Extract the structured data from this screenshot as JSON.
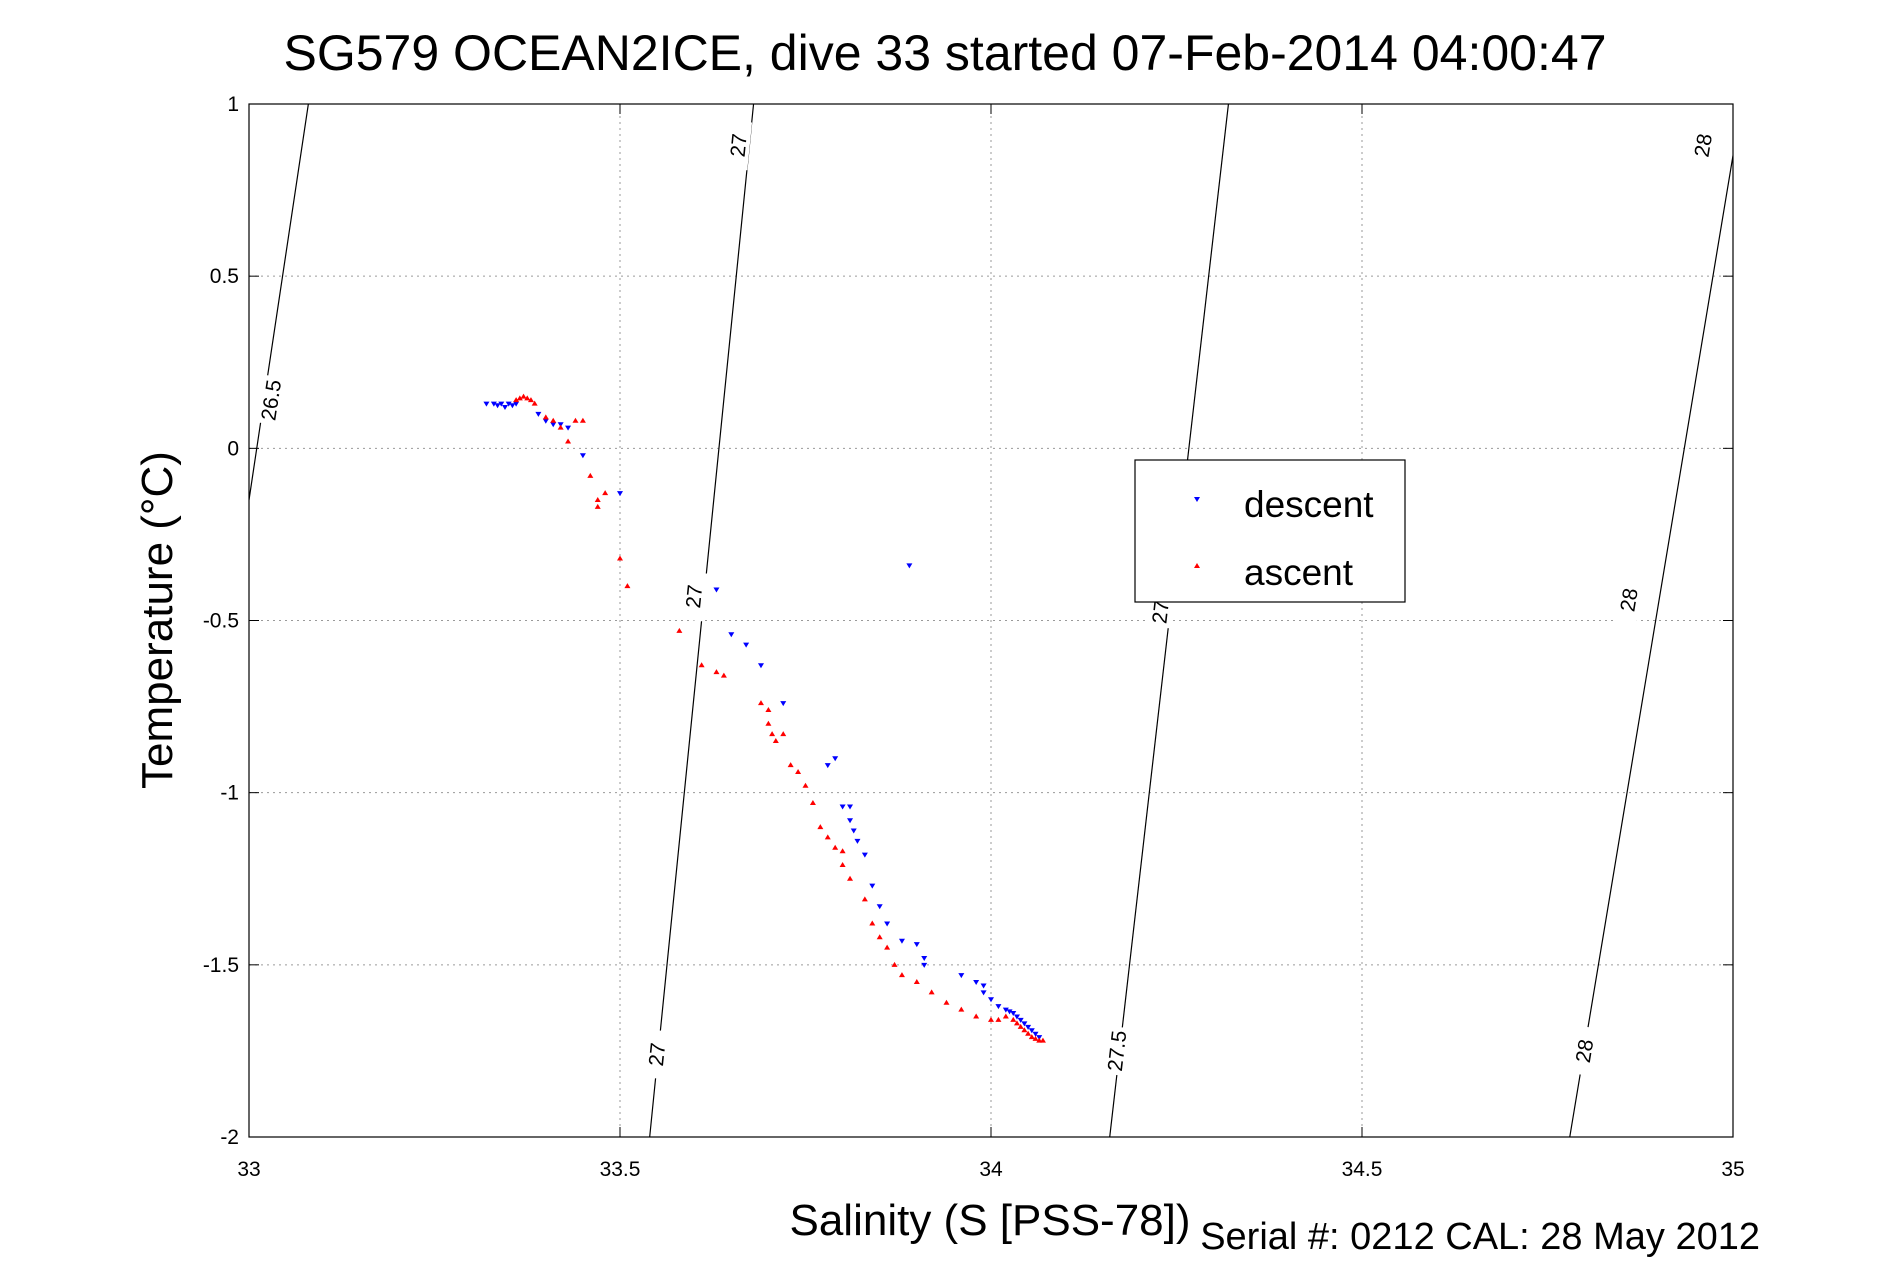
{
  "chart_data": {
    "type": "scatter",
    "title": "SG579 OCEAN2ICE, dive 33 started 07-Feb-2014 04:00:47",
    "xlabel": "Salinity (S [PSS-78])",
    "ylabel": "Temperature (°C)",
    "xlim": [
      33,
      35
    ],
    "ylim": [
      -2,
      1
    ],
    "x_ticks": [
      "33",
      "33.5",
      "34",
      "34.5",
      "35"
    ],
    "y_ticks": [
      "-2",
      "-1.5",
      "-1",
      "-0.5",
      "0",
      "0.5",
      "1"
    ],
    "grid": true,
    "legend_position": "center-right",
    "footer": "Serial #: 0212  CAL: 28 May 2012",
    "contours": [
      {
        "level": "26.5",
        "points": [
          [
            33.0,
            -0.15
          ],
          [
            33.08,
            1.0
          ]
        ],
        "labels": [
          [
            33.03,
            0.14
          ]
        ]
      },
      {
        "level": "27",
        "points": [
          [
            33.54,
            -2.0
          ],
          [
            33.68,
            1.0
          ]
        ],
        "labels": [
          [
            33.66,
            0.88
          ],
          [
            33.6,
            -0.43
          ],
          [
            33.55,
            -1.76
          ]
        ]
      },
      {
        "level": "27.5",
        "points": [
          [
            34.16,
            -2.0
          ],
          [
            34.32,
            1.0
          ]
        ],
        "labels": [
          [
            34.17,
            -1.75
          ],
          [
            34.23,
            -0.45
          ]
        ]
      },
      {
        "level": "28",
        "points": [
          [
            34.78,
            -2.0
          ],
          [
            35.0,
            0.85
          ]
        ],
        "labels": [
          [
            34.8,
            -1.75
          ],
          [
            34.86,
            -0.44
          ],
          [
            34.96,
            0.88
          ]
        ]
      }
    ],
    "series": [
      {
        "name": "descent",
        "color": "#0000ff",
        "marker": "triangle-down",
        "points": [
          [
            33.32,
            0.13
          ],
          [
            33.33,
            0.13
          ],
          [
            33.335,
            0.125
          ],
          [
            33.34,
            0.13
          ],
          [
            33.345,
            0.12
          ],
          [
            33.35,
            0.13
          ],
          [
            33.355,
            0.125
          ],
          [
            33.36,
            0.13
          ],
          [
            33.39,
            0.1
          ],
          [
            33.4,
            0.08
          ],
          [
            33.41,
            0.07
          ],
          [
            33.43,
            0.06
          ],
          [
            33.42,
            0.07
          ],
          [
            33.45,
            -0.02
          ],
          [
            33.5,
            -0.13
          ],
          [
            33.63,
            -0.41
          ],
          [
            33.65,
            -0.54
          ],
          [
            33.67,
            -0.57
          ],
          [
            33.69,
            -0.63
          ],
          [
            33.72,
            -0.74
          ],
          [
            33.89,
            -0.34
          ],
          [
            33.78,
            -0.92
          ],
          [
            33.79,
            -0.9
          ],
          [
            33.8,
            -1.04
          ],
          [
            33.81,
            -1.04
          ],
          [
            33.81,
            -1.08
          ],
          [
            33.815,
            -1.11
          ],
          [
            33.82,
            -1.14
          ],
          [
            33.83,
            -1.18
          ],
          [
            33.84,
            -1.27
          ],
          [
            33.85,
            -1.33
          ],
          [
            33.86,
            -1.38
          ],
          [
            33.88,
            -1.43
          ],
          [
            33.9,
            -1.44
          ],
          [
            33.91,
            -1.48
          ],
          [
            33.91,
            -1.5
          ],
          [
            33.96,
            -1.53
          ],
          [
            33.98,
            -1.55
          ],
          [
            33.99,
            -1.56
          ],
          [
            33.99,
            -1.58
          ],
          [
            34.0,
            -1.6
          ],
          [
            34.01,
            -1.62
          ],
          [
            34.02,
            -1.63
          ],
          [
            34.025,
            -1.635
          ],
          [
            34.03,
            -1.64
          ],
          [
            34.035,
            -1.65
          ],
          [
            34.04,
            -1.66
          ],
          [
            34.045,
            -1.67
          ],
          [
            34.05,
            -1.68
          ],
          [
            34.055,
            -1.69
          ],
          [
            34.06,
            -1.7
          ],
          [
            34.065,
            -1.71
          ]
        ]
      },
      {
        "name": "ascent",
        "color": "#ff0000",
        "marker": "triangle-up",
        "points": [
          [
            33.36,
            0.14
          ],
          [
            33.365,
            0.145
          ],
          [
            33.37,
            0.15
          ],
          [
            33.375,
            0.145
          ],
          [
            33.38,
            0.14
          ],
          [
            33.385,
            0.13
          ],
          [
            33.4,
            0.09
          ],
          [
            33.41,
            0.08
          ],
          [
            33.42,
            0.06
          ],
          [
            33.43,
            0.02
          ],
          [
            33.44,
            0.08
          ],
          [
            33.45,
            0.08
          ],
          [
            33.46,
            -0.08
          ],
          [
            33.47,
            -0.15
          ],
          [
            33.47,
            -0.17
          ],
          [
            33.48,
            -0.13
          ],
          [
            33.5,
            -0.32
          ],
          [
            33.51,
            -0.4
          ],
          [
            33.58,
            -0.53
          ],
          [
            33.61,
            -0.63
          ],
          [
            33.63,
            -0.65
          ],
          [
            33.64,
            -0.66
          ],
          [
            33.69,
            -0.74
          ],
          [
            33.7,
            -0.76
          ],
          [
            33.7,
            -0.8
          ],
          [
            33.705,
            -0.83
          ],
          [
            33.71,
            -0.85
          ],
          [
            33.72,
            -0.83
          ],
          [
            33.73,
            -0.92
          ],
          [
            33.74,
            -0.94
          ],
          [
            33.75,
            -0.98
          ],
          [
            33.76,
            -1.03
          ],
          [
            33.77,
            -1.1
          ],
          [
            33.78,
            -1.13
          ],
          [
            33.79,
            -1.16
          ],
          [
            33.8,
            -1.17
          ],
          [
            33.8,
            -1.21
          ],
          [
            33.81,
            -1.25
          ],
          [
            33.83,
            -1.31
          ],
          [
            33.84,
            -1.38
          ],
          [
            33.85,
            -1.42
          ],
          [
            33.86,
            -1.45
          ],
          [
            33.87,
            -1.5
          ],
          [
            33.88,
            -1.53
          ],
          [
            33.9,
            -1.55
          ],
          [
            33.92,
            -1.58
          ],
          [
            33.94,
            -1.61
          ],
          [
            33.96,
            -1.63
          ],
          [
            33.98,
            -1.65
          ],
          [
            34.0,
            -1.66
          ],
          [
            34.01,
            -1.66
          ],
          [
            34.02,
            -1.65
          ],
          [
            34.03,
            -1.66
          ],
          [
            34.035,
            -1.67
          ],
          [
            34.04,
            -1.68
          ],
          [
            34.045,
            -1.69
          ],
          [
            34.05,
            -1.7
          ],
          [
            34.055,
            -1.71
          ],
          [
            34.06,
            -1.715
          ],
          [
            34.065,
            -1.72
          ],
          [
            34.07,
            -1.72
          ]
        ]
      }
    ]
  }
}
